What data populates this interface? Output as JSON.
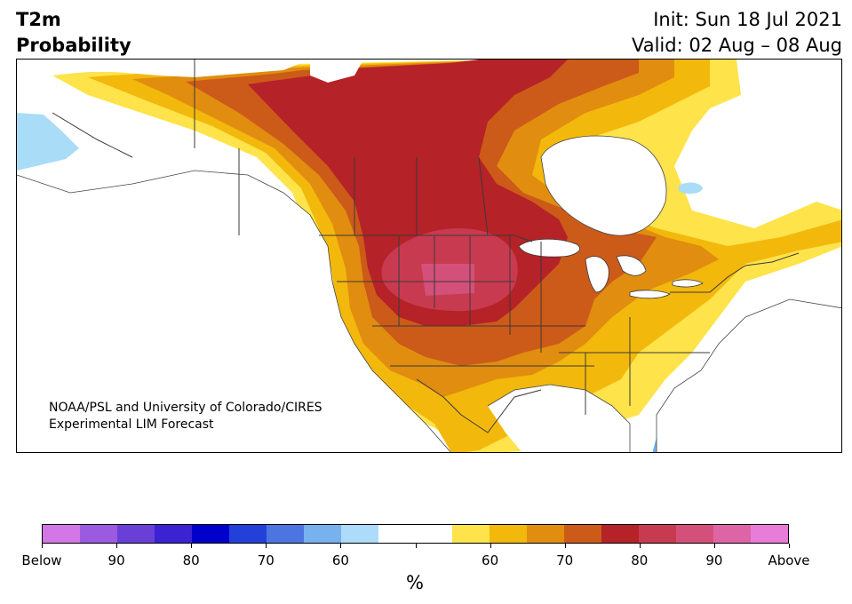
{
  "header": {
    "title_line1": "T2m",
    "title_line2": "Probability",
    "init": "Init: Sun 18 Jul 2021",
    "valid": "Valid: 02 Aug – 08 Aug"
  },
  "map": {
    "region": "North America",
    "credit_line1": "NOAA/PSL and University of Colorado/CIRES",
    "credit_line2": "Experimental LIM Forecast",
    "colors": {
      "below_light_blue": "#a9dcf7",
      "below_mid_blue": "#6fb2ee",
      "above_60": "#fee34b",
      "above_65": "#f3b80c",
      "above_70": "#e08d10",
      "above_75": "#cc5a18",
      "above_80": "#b52227",
      "above_85": "#c83a50",
      "above_90": "#d3507a",
      "borders": "#3a3a3a",
      "lakes": "#ffffff"
    }
  },
  "colorbar": {
    "unit": "%",
    "segments": [
      "#d477e6",
      "#9b5ae0",
      "#6a3fd8",
      "#3b22d2",
      "#0000cc",
      "#2340d8",
      "#4c75e2",
      "#77b1ee",
      "#acdcfa",
      "#ffffff",
      "#ffffff",
      "#fee34b",
      "#f3b80c",
      "#e08d10",
      "#cc5a18",
      "#b52227",
      "#c83a50",
      "#d3507a",
      "#dd65a6",
      "#e97bd9"
    ],
    "labels": [
      "Below",
      "90",
      "80",
      "70",
      "60",
      "",
      "60",
      "70",
      "80",
      "90",
      "Above"
    ]
  }
}
